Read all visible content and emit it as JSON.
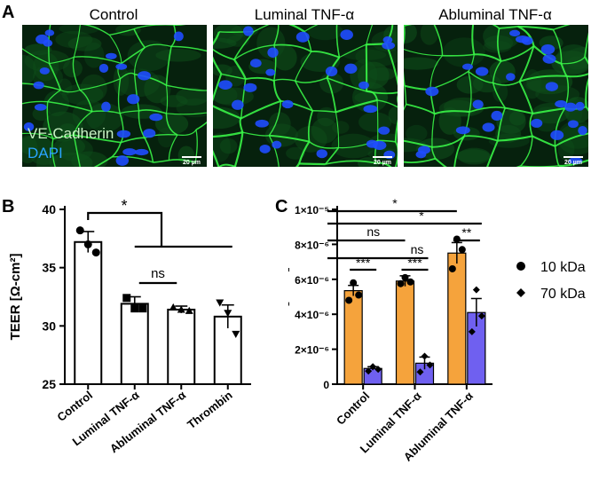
{
  "panels": {
    "a": "A",
    "b": "B",
    "c": "C"
  },
  "microscopy": {
    "images": [
      {
        "title": "Control",
        "scale_bar": "20 µm"
      },
      {
        "title": "Luminal TNF-α",
        "scale_bar": "20 µm"
      },
      {
        "title": "Abluminal TNF-α",
        "scale_bar": "20 µm"
      }
    ],
    "stains": [
      {
        "label": "VE-Cadherin",
        "color": "#c9f2c4"
      },
      {
        "label": "DAPI",
        "color": "#2aa4ff"
      }
    ],
    "colors": {
      "background": "#06210d",
      "junction": "#3cff4a",
      "nucleus": "#1f4dff"
    }
  },
  "chart_data": [
    {
      "type": "bar",
      "ylabel": "TEER [Ω-cm²]",
      "ylim": [
        25,
        40
      ],
      "yticks": [
        25,
        30,
        35,
        40
      ],
      "categories": [
        "Control",
        "Luminal TNF-α",
        "Abluminal TNF-α",
        "Thrombin"
      ],
      "values": [
        37.2,
        31.9,
        31.4,
        30.8
      ],
      "errors": [
        0.9,
        0.6,
        0.3,
        1.0
      ],
      "markers": [
        "circle",
        "square",
        "triangle-up",
        "triangle-down"
      ],
      "points": [
        [
          38.2,
          37.0,
          36.3
        ],
        [
          32.4,
          31.5,
          31.5
        ],
        [
          31.6,
          31.4,
          31.3
        ],
        [
          32.0,
          31.1,
          29.3
        ]
      ],
      "bar_color": "#ffffff",
      "significance": [
        {
          "label": "*",
          "from": 0,
          "to": 3
        },
        {
          "label": "ns",
          "from": 1,
          "to": 2
        }
      ]
    },
    {
      "type": "bar",
      "ylabel": "Pe [cm/s]",
      "ylim": [
        0,
        1e-05
      ],
      "ytick_labels": [
        "0",
        "2×10⁻⁶",
        "4×10⁻⁶",
        "6×10⁻⁶",
        "8×10⁻⁶",
        "1×10⁻⁵"
      ],
      "yticks": [
        0,
        2e-06,
        4e-06,
        6e-06,
        8e-06,
        1e-05
      ],
      "categories": [
        "Control",
        "Luminal TNF-α",
        "Abluminal TNF-α"
      ],
      "series": [
        {
          "name": "10 kDa",
          "color": "#f5a33c",
          "marker": "circle",
          "values": [
            5.35e-06,
            5.9e-06,
            7.5e-06
          ],
          "errors": [
            3e-07,
            3e-07,
            6e-07
          ],
          "points": [
            [
              5.8e-06,
              5.1e-06,
              4.8e-06
            ],
            [
              6.1e-06,
              5.85e-06,
              5.75e-06
            ],
            [
              8.3e-06,
              7.7e-06,
              6.6e-06
            ]
          ]
        },
        {
          "name": "70 kDa",
          "color": "#6f60f0",
          "marker": "diamond",
          "values": [
            9e-07,
            1.2e-06,
            4.1e-06
          ],
          "errors": [
            1e-07,
            3.5e-07,
            8e-07
          ],
          "points": [
            [
              1e-06,
              8.5e-07,
              7.5e-07
            ],
            [
              1.6e-06,
              1.1e-06,
              7e-07
            ],
            [
              5.4e-06,
              3.9e-06,
              3e-06
            ]
          ]
        }
      ],
      "legend": "right",
      "significance": [
        {
          "label": "*",
          "from": [
            0,
            0
          ],
          "to": [
            2,
            0
          ]
        },
        {
          "label": "*",
          "from": [
            0,
            0
          ],
          "to": [
            2,
            1
          ]
        },
        {
          "label": "ns",
          "from": [
            0,
            0
          ],
          "to": [
            1,
            0
          ]
        },
        {
          "label": "ns",
          "from": [
            0,
            1
          ],
          "to": [
            1,
            1
          ]
        },
        {
          "label": "***",
          "from": [
            0,
            0
          ],
          "to": [
            0,
            1
          ]
        },
        {
          "label": "***",
          "from": [
            1,
            0
          ],
          "to": [
            1,
            1
          ]
        },
        {
          "label": "**",
          "from": [
            2,
            0
          ],
          "to": [
            2,
            1
          ]
        }
      ]
    }
  ]
}
